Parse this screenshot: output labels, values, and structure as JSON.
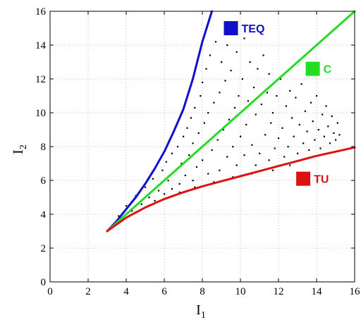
{
  "chart_data": {
    "type": "scatter",
    "title": "",
    "xlabel": "I",
    "xlabel_sub": "1",
    "ylabel": "I",
    "ylabel_sub": "2",
    "xlim": [
      0,
      16
    ],
    "ylim": [
      0,
      16
    ],
    "xticks": [
      0,
      2,
      4,
      6,
      8,
      10,
      12,
      14,
      16
    ],
    "yticks": [
      0,
      2,
      4,
      6,
      8,
      10,
      12,
      14,
      16
    ],
    "grid": true,
    "curves": [
      {
        "name": "TEQ",
        "color": "#1010cc",
        "points": [
          [
            3,
            3
          ],
          [
            3.5,
            3.6
          ],
          [
            4,
            4.3
          ],
          [
            4.5,
            5.0
          ],
          [
            5,
            5.8
          ],
          [
            5.5,
            6.7
          ],
          [
            6,
            7.7
          ],
          [
            6.5,
            8.9
          ],
          [
            7,
            10.2
          ],
          [
            7.5,
            12.0
          ],
          [
            8,
            14.2
          ],
          [
            8.5,
            16.0
          ]
        ]
      },
      {
        "name": "C",
        "color": "#22dd22",
        "points": [
          [
            3,
            3
          ],
          [
            16,
            16
          ]
        ]
      },
      {
        "name": "TU",
        "color": "#dd1111",
        "points": [
          [
            3,
            3
          ],
          [
            4,
            3.8
          ],
          [
            5,
            4.4
          ],
          [
            6,
            4.9
          ],
          [
            7,
            5.3
          ],
          [
            8,
            5.65
          ],
          [
            9,
            5.95
          ],
          [
            10,
            6.25
          ],
          [
            11,
            6.55
          ],
          [
            12,
            6.85
          ],
          [
            13,
            7.15
          ],
          [
            14,
            7.45
          ],
          [
            15,
            7.7
          ],
          [
            16,
            7.95
          ]
        ]
      }
    ],
    "legend": [
      {
        "label": "TEQ",
        "color": "#1010cc",
        "x": 9.5,
        "y": 15.0
      },
      {
        "label": "C",
        "color": "#22dd22",
        "x": 13.8,
        "y": 12.6
      },
      {
        "label": "TU",
        "color": "#dd1111",
        "x": 13.3,
        "y": 6.1
      }
    ],
    "points": [
      [
        3.6,
        3.9
      ],
      [
        4.0,
        4.5
      ],
      [
        4.3,
        4.2
      ],
      [
        4.5,
        5.1
      ],
      [
        4.8,
        4.6
      ],
      [
        5.0,
        5.6
      ],
      [
        5.2,
        5.0
      ],
      [
        5.4,
        6.1
      ],
      [
        5.5,
        4.8
      ],
      [
        5.7,
        5.4
      ],
      [
        5.9,
        6.6
      ],
      [
        6.0,
        5.2
      ],
      [
        6.1,
        7.1
      ],
      [
        6.2,
        6.0
      ],
      [
        6.4,
        5.5
      ],
      [
        6.4,
        7.6
      ],
      [
        6.5,
        6.5
      ],
      [
        6.7,
        8.0
      ],
      [
        6.8,
        5.8
      ],
      [
        6.9,
        7.0
      ],
      [
        7.0,
        8.6
      ],
      [
        7.1,
        6.3
      ],
      [
        7.2,
        9.1
      ],
      [
        7.3,
        7.5
      ],
      [
        7.4,
        9.7
      ],
      [
        7.5,
        6.0
      ],
      [
        7.5,
        8.2
      ],
      [
        7.6,
        10.3
      ],
      [
        7.7,
        6.8
      ],
      [
        7.8,
        8.8
      ],
      [
        7.9,
        11.0
      ],
      [
        8.0,
        7.2
      ],
      [
        8.0,
        11.8
      ],
      [
        8.1,
        9.4
      ],
      [
        8.2,
        12.6
      ],
      [
        8.3,
        6.4
      ],
      [
        8.3,
        10.0
      ],
      [
        8.4,
        13.4
      ],
      [
        8.5,
        7.8
      ],
      [
        8.6,
        10.6
      ],
      [
        8.7,
        14.2
      ],
      [
        8.8,
        8.4
      ],
      [
        8.9,
        11.2
      ],
      [
        8.9,
        6.6
      ],
      [
        9.0,
        13.0
      ],
      [
        9.1,
        9.0
      ],
      [
        9.2,
        11.9
      ],
      [
        9.3,
        7.4
      ],
      [
        9.3,
        14.0
      ],
      [
        9.4,
        9.6
      ],
      [
        9.5,
        12.5
      ],
      [
        9.6,
        8.0
      ],
      [
        9.7,
        10.3
      ],
      [
        9.8,
        13.6
      ],
      [
        9.8,
        6.9
      ],
      [
        9.9,
        11.0
      ],
      [
        10.0,
        8.6
      ],
      [
        10.1,
        12.0
      ],
      [
        10.2,
        14.4
      ],
      [
        10.2,
        7.5
      ],
      [
        10.3,
        9.3
      ],
      [
        10.4,
        10.7
      ],
      [
        10.5,
        13.0
      ],
      [
        10.6,
        8.1
      ],
      [
        10.7,
        11.5
      ],
      [
        10.8,
        6.9
      ],
      [
        10.8,
        9.9
      ],
      [
        10.9,
        12.6
      ],
      [
        11.0,
        7.6
      ],
      [
        11.1,
        10.5
      ],
      [
        11.2,
        13.4
      ],
      [
        11.3,
        8.7
      ],
      [
        11.4,
        11.2
      ],
      [
        11.5,
        7.2
      ],
      [
        11.5,
        12.3
      ],
      [
        11.6,
        9.4
      ],
      [
        11.7,
        10.0
      ],
      [
        11.8,
        7.9
      ],
      [
        11.9,
        11.0
      ],
      [
        12.0,
        8.5
      ],
      [
        12.1,
        12.0
      ],
      [
        12.2,
        9.1
      ],
      [
        12.3,
        7.4
      ],
      [
        12.4,
        10.4
      ],
      [
        12.5,
        8.0
      ],
      [
        12.6,
        11.3
      ],
      [
        12.7,
        9.7
      ],
      [
        12.8,
        8.6
      ],
      [
        12.9,
        10.9
      ],
      [
        13.0,
        7.6
      ],
      [
        13.1,
        9.3
      ],
      [
        13.2,
        11.7
      ],
      [
        13.3,
        8.2
      ],
      [
        13.4,
        10.1
      ],
      [
        13.5,
        8.9
      ],
      [
        13.6,
        7.8
      ],
      [
        13.7,
        10.6
      ],
      [
        13.8,
        9.5
      ],
      [
        13.9,
        8.4
      ],
      [
        14.0,
        11.0
      ],
      [
        14.1,
        9.0
      ],
      [
        14.2,
        7.9
      ],
      [
        14.3,
        9.9
      ],
      [
        14.4,
        8.6
      ],
      [
        14.5,
        10.4
      ],
      [
        14.6,
        9.2
      ],
      [
        14.7,
        8.2
      ],
      [
        14.8,
        9.8
      ],
      [
        14.9,
        8.8
      ],
      [
        15.0,
        8.4
      ],
      [
        15.1,
        9.4
      ],
      [
        15.2,
        8.7
      ],
      [
        12.6,
        6.9
      ],
      [
        11.7,
        6.6
      ],
      [
        10.6,
        6.4
      ],
      [
        9.6,
        6.2
      ],
      [
        8.6,
        5.9
      ],
      [
        7.6,
        5.6
      ],
      [
        6.8,
        5.3
      ],
      [
        6.0,
        4.9
      ],
      [
        5.2,
        4.5
      ]
    ]
  }
}
